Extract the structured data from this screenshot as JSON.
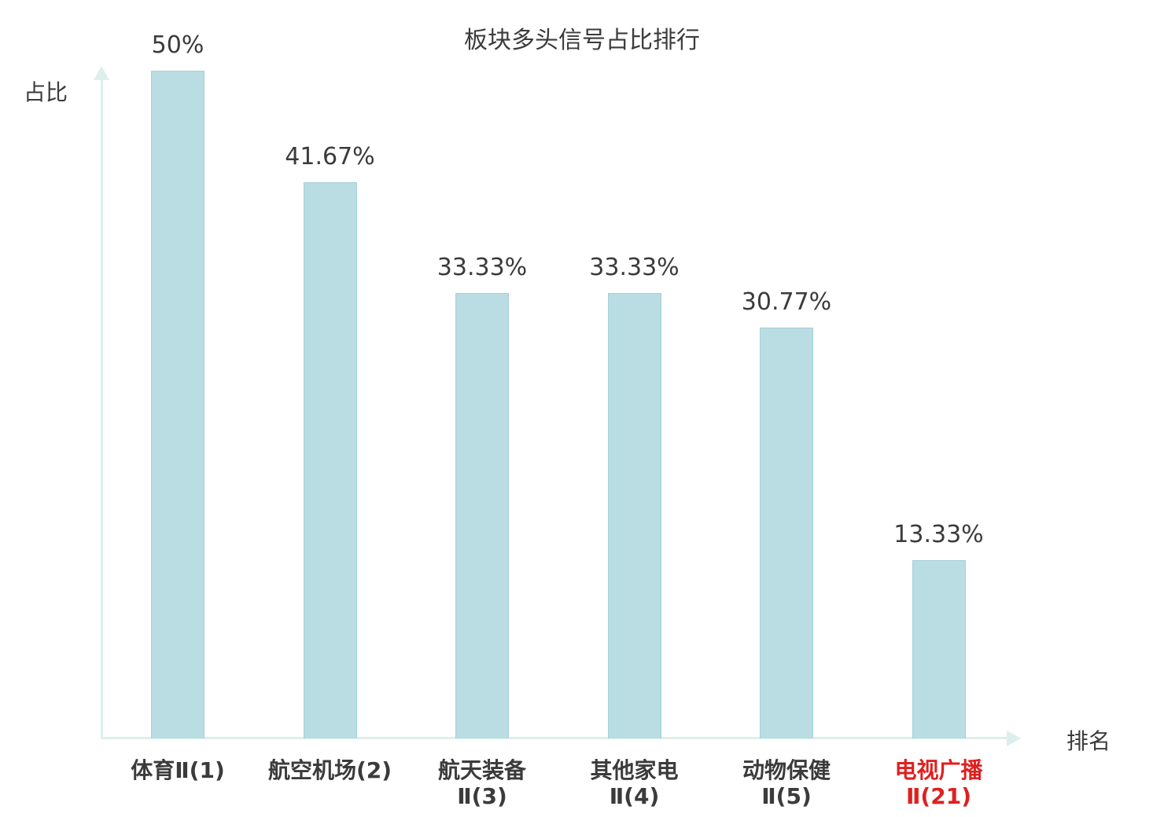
{
  "chart_data": {
    "type": "bar",
    "title": "板块多头信号占比排行",
    "xlabel": "排名",
    "ylabel": "占比",
    "categories": [
      "体育Ⅱ(1)",
      "航空机场(2)",
      "航天装备Ⅱ(3)",
      "其他家电Ⅱ(4)",
      "动物保健Ⅱ(5)",
      "电视广播Ⅱ(21)"
    ],
    "category_lines": [
      [
        "体育Ⅱ(1)"
      ],
      [
        "航空机场(2)"
      ],
      [
        "航天装备",
        "Ⅱ(3)"
      ],
      [
        "其他家电",
        "Ⅱ(4)"
      ],
      [
        "动物保健",
        "Ⅱ(5)"
      ],
      [
        "电视广播",
        "Ⅱ(21)"
      ]
    ],
    "values": [
      50,
      41.67,
      33.33,
      33.33,
      30.77,
      13.33
    ],
    "value_labels": [
      "50%",
      "41.67%",
      "33.33%",
      "33.33%",
      "30.77%",
      "13.33%"
    ],
    "ylim": [
      0,
      50
    ],
    "grid": false,
    "legend": "none",
    "highlight_index": 5,
    "colors": {
      "bar_fill": "#b9dde2",
      "bar_border": "#a6d0d7",
      "axis": "#dcefed",
      "text": "#3b3b3b",
      "highlight": "#e01f1f"
    }
  }
}
